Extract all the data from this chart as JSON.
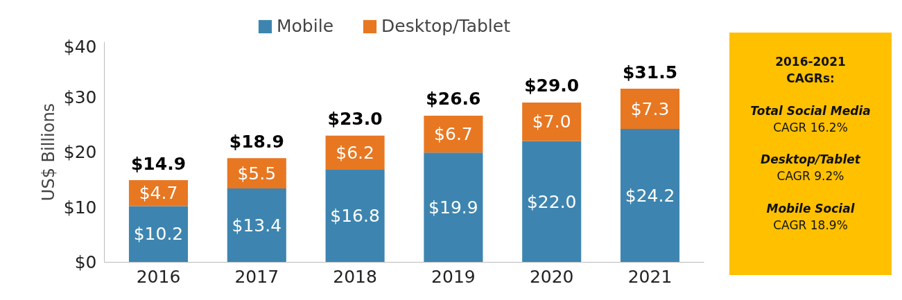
{
  "chart_data": {
    "type": "bar",
    "stacked": true,
    "ylabel": "US$ Billions",
    "categories": [
      "2016",
      "2017",
      "2018",
      "2019",
      "2020",
      "2021"
    ],
    "series": [
      {
        "name": "Mobile",
        "color": "#3d85b0",
        "values": [
          10.2,
          13.4,
          16.8,
          19.9,
          22.0,
          24.2
        ],
        "value_labels": [
          "$10.2",
          "$13.4",
          "$16.8",
          "$19.9",
          "$22.0",
          "$24.2"
        ]
      },
      {
        "name": "Desktop/Tablet",
        "color": "#e87722",
        "values": [
          4.7,
          5.5,
          6.2,
          6.7,
          7.0,
          7.3
        ],
        "value_labels": [
          "$4.7",
          "$5.5",
          "$6.2",
          "$6.7",
          "$7.0",
          "$7.3"
        ]
      }
    ],
    "totals": [
      "$14.9",
      "$18.9",
      "$23.0",
      "$26.6",
      "$29.0",
      "$31.5"
    ],
    "ylim": [
      0,
      40
    ],
    "yticks": [
      {
        "value": 0,
        "label": "$0"
      },
      {
        "value": 10,
        "label": "$10"
      },
      {
        "value": 20,
        "label": "$20"
      },
      {
        "value": 30,
        "label": "$30"
      },
      {
        "value": 40,
        "label": "$40"
      }
    ],
    "grid": false,
    "legend": "top",
    "annotations": [
      "2016-2021 CAGRs:",
      "Total Social Media",
      "CAGR 16.2%",
      "Desktop/Tablet",
      "CAGR 9.2%",
      "Mobile Social",
      "CAGR 18.9%"
    ]
  }
}
